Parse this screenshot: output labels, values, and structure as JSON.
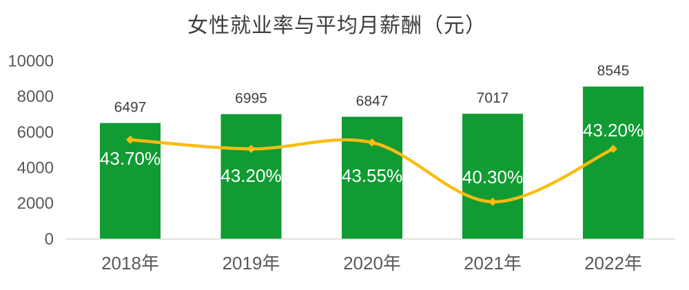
{
  "chart_data": {
    "type": "bar",
    "combo": "bar+line",
    "title": "女性就业率与平均月薪酬（元）",
    "categories": [
      "2018年",
      "2019年",
      "2020年",
      "2021年",
      "2022年"
    ],
    "series": [
      {
        "name": "平均月薪酬",
        "type": "bar",
        "values": [
          6497,
          6995,
          6847,
          7017,
          8545
        ],
        "data_labels": [
          "6497",
          "6995",
          "6847",
          "7017",
          "8545"
        ],
        "color": "#119b33"
      },
      {
        "name": "女性就业率",
        "type": "line",
        "values": [
          43.7,
          43.2,
          43.55,
          40.3,
          43.2
        ],
        "data_labels": [
          "43.70%",
          "43.20%",
          "43.55%",
          "40.30%",
          "43.20%"
        ],
        "color": "#fbbc12"
      }
    ],
    "yticks": [
      0,
      2000,
      4000,
      6000,
      8000,
      10000
    ],
    "ylim": [
      0,
      10000
    ],
    "grid": false,
    "legend_position": "none",
    "colors": {
      "bar_fill": "#119b33",
      "line_stroke": "#fbbc12",
      "bar_label_text": "#3f3f3f",
      "pct_label_text": "#ffffff",
      "axis_tick_text": "#595959",
      "axis_line": "#e2e2e2",
      "title_text": "#3d3d3d",
      "background": "#ffffff"
    }
  }
}
